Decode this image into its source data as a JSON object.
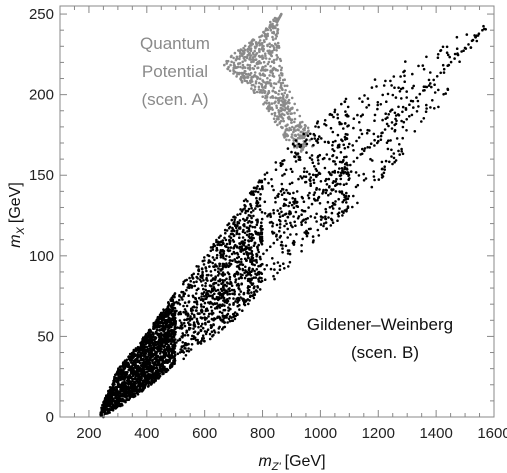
{
  "chart_data": {
    "type": "scatter",
    "title": "",
    "xlabel_main": "m",
    "xlabel_sub": "Z'",
    "xlabel_unit": "[GeV]",
    "ylabel_main": "m",
    "ylabel_sub": "X",
    "ylabel_unit": "[GeV]",
    "xlim": [
      100,
      1600
    ],
    "ylim": [
      0,
      255
    ],
    "xticks": [
      200,
      400,
      600,
      800,
      1000,
      1200,
      1400,
      1600
    ],
    "yticks": [
      0,
      50,
      100,
      150,
      200,
      250
    ],
    "grid": false,
    "colors": {
      "scenA": "#8a8a8a",
      "scenB": "#000000",
      "frame": "#888888"
    },
    "annotations": {
      "scenA_lines": [
        "Quantum",
        "Potential",
        "(scen. A)"
      ],
      "scenB_lines": [
        "Gildener–Weinberg",
        "(scen. B)"
      ]
    },
    "series": [
      {
        "key": "A",
        "shape": "polygon",
        "outline": [
          [
            850,
            250
          ],
          [
            865,
            218
          ],
          [
            885,
            200
          ],
          [
            920,
            185
          ],
          [
            968,
            178
          ],
          [
            950,
            168
          ],
          [
            930,
            164
          ],
          [
            880,
            172
          ],
          [
            820,
            190
          ],
          [
            760,
            203
          ],
          [
            700,
            212
          ],
          [
            660,
            218
          ],
          [
            700,
            226
          ],
          [
            780,
            236
          ],
          [
            830,
            246
          ]
        ],
        "count": 650,
        "edges": [
          [
            850,
            245,
            865,
            250
          ],
          [
            868,
            213,
            972,
            168
          ]
        ]
      },
      {
        "key": "B",
        "shape": "band",
        "lower": [
          [
            240,
            0
          ],
          [
            300,
            5
          ],
          [
            400,
            18
          ],
          [
            500,
            32
          ],
          [
            600,
            45
          ],
          [
            700,
            60
          ],
          [
            800,
            78
          ],
          [
            900,
            95
          ],
          [
            1000,
            112
          ],
          [
            1100,
            128
          ],
          [
            1200,
            143
          ],
          [
            1300,
            165
          ],
          [
            1400,
            190
          ],
          [
            1500,
            220
          ],
          [
            1560,
            238
          ]
        ],
        "upper": [
          [
            240,
            5
          ],
          [
            300,
            30
          ],
          [
            400,
            52
          ],
          [
            500,
            78
          ],
          [
            600,
            100
          ],
          [
            700,
            125
          ],
          [
            800,
            150
          ],
          [
            900,
            170
          ],
          [
            1000,
            185
          ],
          [
            1100,
            200
          ],
          [
            1200,
            212
          ],
          [
            1300,
            222
          ],
          [
            1400,
            230
          ],
          [
            1500,
            238
          ],
          [
            1560,
            243
          ]
        ],
        "count": [
          [
            240,
            500,
            1800
          ],
          [
            500,
            800,
            1000
          ],
          [
            800,
            1100,
            450
          ],
          [
            1100,
            1300,
            140
          ],
          [
            1300,
            1460,
            50
          ],
          [
            1460,
            1575,
            20
          ]
        ],
        "edges": [
          [
            250,
            0,
            1560,
            240
          ]
        ]
      }
    ]
  }
}
